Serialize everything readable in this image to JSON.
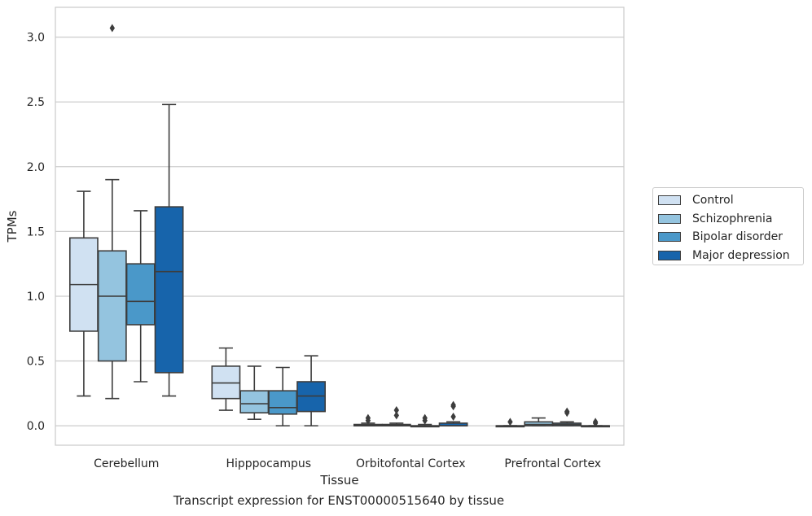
{
  "chart_data": {
    "type": "box",
    "xlabel": "Tissue",
    "ylabel": "TPMs",
    "caption": "Transcript expression for ENST00000515640 by tissue",
    "ylim": [
      -0.15,
      3.23
    ],
    "yticks": [
      "0.0",
      "0.5",
      "1.0",
      "1.5",
      "2.0",
      "2.5",
      "3.0"
    ],
    "grid": "horizontal",
    "legend_position": "right",
    "categories": [
      "Cerebellum",
      "Hipppocampus",
      "Orbitofontal Cortex",
      "Prefrontal Cortex"
    ],
    "series": [
      {
        "name": "Control",
        "color": "#d0e1f2",
        "boxes": [
          {
            "whislo": 0.23,
            "q1": 0.73,
            "med": 1.09,
            "q3": 1.45,
            "whishi": 1.81,
            "fliers": []
          },
          {
            "whislo": 0.12,
            "q1": 0.21,
            "med": 0.33,
            "q3": 0.46,
            "whishi": 0.6,
            "fliers": []
          },
          {
            "whislo": 0.0,
            "q1": 0.0,
            "med": 0.0,
            "q3": 0.01,
            "whishi": 0.02,
            "fliers": [
              0.04,
              0.06
            ]
          },
          {
            "whislo": 0.0,
            "q1": 0.0,
            "med": 0.0,
            "q3": 0.0,
            "whishi": 0.0,
            "fliers": [
              0.03
            ]
          }
        ]
      },
      {
        "name": "Schizophrenia",
        "color": "#94c4df",
        "boxes": [
          {
            "whislo": 0.21,
            "q1": 0.5,
            "med": 1.0,
            "q3": 1.35,
            "whishi": 1.9,
            "fliers": [
              3.07
            ]
          },
          {
            "whislo": 0.05,
            "q1": 0.1,
            "med": 0.17,
            "q3": 0.27,
            "whishi": 0.46,
            "fliers": []
          },
          {
            "whislo": 0.0,
            "q1": 0.0,
            "med": 0.0,
            "q3": 0.01,
            "whishi": 0.02,
            "fliers": [
              0.08,
              0.12
            ]
          },
          {
            "whislo": 0.0,
            "q1": 0.0,
            "med": 0.01,
            "q3": 0.03,
            "whishi": 0.06,
            "fliers": []
          }
        ]
      },
      {
        "name": "Bipolar disorder",
        "color": "#4a98c9",
        "boxes": [
          {
            "whislo": 0.34,
            "q1": 0.78,
            "med": 0.96,
            "q3": 1.25,
            "whishi": 1.66,
            "fliers": []
          },
          {
            "whislo": 0.0,
            "q1": 0.09,
            "med": 0.14,
            "q3": 0.27,
            "whishi": 0.45,
            "fliers": []
          },
          {
            "whislo": 0.0,
            "q1": 0.0,
            "med": 0.0,
            "q3": 0.0,
            "whishi": 0.01,
            "fliers": [
              0.04,
              0.06
            ]
          },
          {
            "whislo": 0.0,
            "q1": 0.0,
            "med": 0.01,
            "q3": 0.02,
            "whishi": 0.03,
            "fliers": [
              0.1,
              0.11
            ]
          }
        ]
      },
      {
        "name": "Major depression",
        "color": "#1764ab",
        "boxes": [
          {
            "whislo": 0.23,
            "q1": 0.41,
            "med": 1.19,
            "q3": 1.69,
            "whishi": 2.48,
            "fliers": []
          },
          {
            "whislo": 0.0,
            "q1": 0.11,
            "med": 0.23,
            "q3": 0.34,
            "whishi": 0.54,
            "fliers": []
          },
          {
            "whislo": 0.0,
            "q1": 0.0,
            "med": 0.0,
            "q3": 0.02,
            "whishi": 0.03,
            "fliers": [
              0.07,
              0.15,
              0.16
            ]
          },
          {
            "whislo": 0.0,
            "q1": 0.0,
            "med": 0.0,
            "q3": 0.0,
            "whishi": 0.0,
            "fliers": [
              0.02,
              0.03
            ]
          }
        ]
      }
    ]
  }
}
